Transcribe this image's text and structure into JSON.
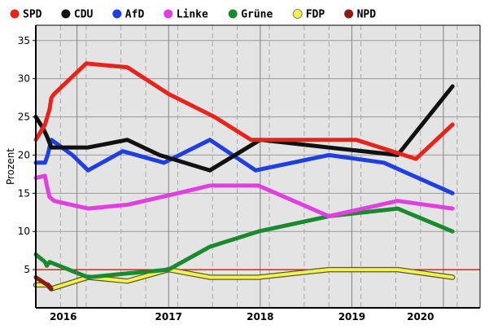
{
  "chart_data": {
    "type": "line",
    "title": "",
    "xlabel": "",
    "ylabel": "Prozent",
    "xlim": [
      2015.55,
      2020.4
    ],
    "ylim": [
      0,
      37
    ],
    "y_ticks": [
      5,
      10,
      15,
      20,
      25,
      30,
      35
    ],
    "x_tick_labels": [
      {
        "x": 2015.85,
        "label": "2016"
      },
      {
        "x": 2017.0,
        "label": "2017"
      },
      {
        "x": 2018.0,
        "label": "2018"
      },
      {
        "x": 2019.0,
        "label": "2019"
      },
      {
        "x": 2019.75,
        "label": "2020"
      }
    ],
    "year_boundaries": [
      2016.0,
      2017.0,
      2018.0,
      2019.0,
      2020.0
    ],
    "quarter_gridlines": [
      2015.82,
      2016.1,
      2016.48,
      2016.75,
      2017.1,
      2017.48,
      2017.75,
      2018.1,
      2018.48,
      2018.75,
      2019.1,
      2019.48,
      2019.75,
      2020.15
    ],
    "reference_line": {
      "value": 5,
      "color": "#e00000"
    },
    "legend": [
      {
        "label": "SPD",
        "color": "#e8231b"
      },
      {
        "label": "CDU",
        "color": "#111111"
      },
      {
        "label": "AfD",
        "color": "#1f3fe0"
      },
      {
        "label": "Linke",
        "color": "#e040e0"
      },
      {
        "label": "Grüne",
        "color": "#1a8a2e"
      },
      {
        "label": "FDP",
        "color": "#f4f050"
      },
      {
        "label": "NPD",
        "color": "#8b1a10"
      }
    ],
    "series": [
      {
        "name": "SPD",
        "color": "#e8231b",
        "x": [
          2015.55,
          2015.65,
          2015.7,
          2015.72,
          2015.75,
          2016.1,
          2016.55,
          2017.0,
          2017.5,
          2017.9,
          2018.48,
          2018.75,
          2019.05,
          2019.7,
          2020.1
        ],
        "y": [
          22,
          24,
          26,
          27.5,
          28,
          32,
          31.5,
          28,
          25,
          22,
          22,
          22,
          22,
          19.5,
          24
        ]
      },
      {
        "name": "CDU",
        "color": "#111111",
        "x": [
          2015.55,
          2015.63,
          2015.67,
          2015.72,
          2016.12,
          2016.55,
          2016.9,
          2017.45,
          2018.0,
          2018.75,
          2019.5,
          2020.1
        ],
        "y": [
          25,
          23.5,
          22.5,
          21,
          21,
          22,
          20,
          18,
          22,
          21,
          20,
          29
        ]
      },
      {
        "name": "AfD",
        "color": "#1f3fe0",
        "x": [
          2015.55,
          2015.65,
          2015.68,
          2015.72,
          2015.95,
          2016.12,
          2016.5,
          2016.95,
          2017.45,
          2017.95,
          2018.75,
          2019.35,
          2020.1
        ],
        "y": [
          19,
          19,
          20,
          22,
          20,
          18,
          20.5,
          19,
          22,
          18,
          20,
          19,
          15
        ]
      },
      {
        "name": "Linke",
        "color": "#e040e0",
        "x": [
          2015.55,
          2015.65,
          2015.67,
          2015.7,
          2015.75,
          2016.12,
          2016.55,
          2017.1,
          2017.45,
          2017.98,
          2018.75,
          2019.5,
          2020.1
        ],
        "y": [
          17,
          17.3,
          16,
          14.5,
          14,
          13,
          13.5,
          15,
          16,
          16,
          12,
          14,
          13
        ]
      },
      {
        "name": "Grüne",
        "color": "#1a8a2e",
        "x": [
          2015.55,
          2015.65,
          2015.67,
          2015.7,
          2016.12,
          2016.55,
          2017.0,
          2017.45,
          2017.98,
          2018.75,
          2019.5,
          2020.1
        ],
        "y": [
          7,
          6,
          5.5,
          6,
          4,
          4.5,
          5,
          8,
          10,
          12,
          13,
          10
        ]
      },
      {
        "name": "FDP",
        "color": "#f4f050",
        "x": [
          2015.55,
          2015.68,
          2015.72,
          2016.12,
          2016.55,
          2017.0,
          2017.45,
          2017.98,
          2018.75,
          2019.5,
          2020.1
        ],
        "y": [
          3,
          3,
          2.5,
          4,
          3.5,
          5,
          4,
          4,
          5,
          5,
          4
        ]
      },
      {
        "name": "NPD",
        "color": "#8b1a10",
        "x": [
          2015.55,
          2015.65,
          2015.68,
          2015.72
        ],
        "y": [
          4,
          3.2,
          3.0,
          2.5
        ]
      }
    ]
  }
}
